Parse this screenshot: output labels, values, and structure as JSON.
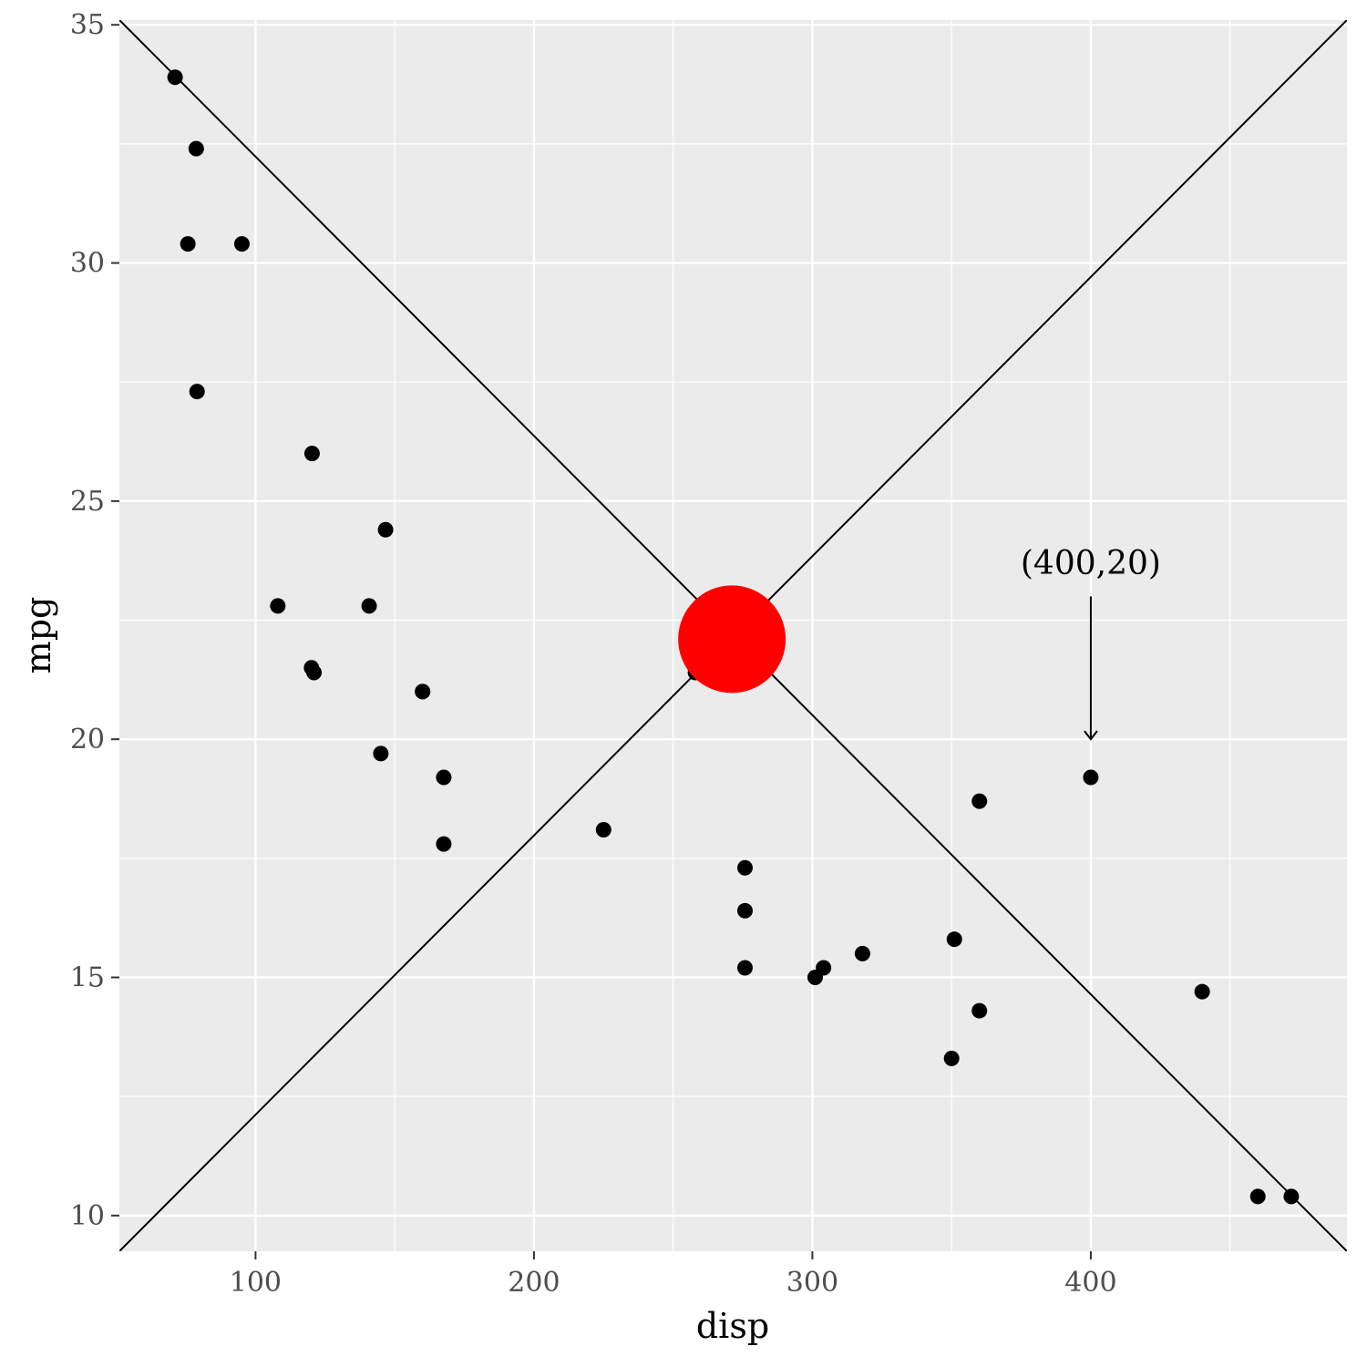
{
  "chart_data": {
    "type": "scatter",
    "xlabel": "disp",
    "ylabel": "mpg",
    "xlim": [
      51.1,
      492
    ],
    "ylim": [
      9.25,
      35.1
    ],
    "x_ticks": [
      100,
      200,
      300,
      400
    ],
    "x_tick_labels": [
      "100",
      "200",
      "300",
      "400"
    ],
    "y_ticks": [
      10,
      15,
      20,
      25,
      30,
      35
    ],
    "y_tick_labels": [
      "10",
      "15",
      "20",
      "25",
      "30",
      "35"
    ],
    "grid": true,
    "colors": {
      "panel": "#ebebeb",
      "grid": "#ffffff",
      "point": "#000000",
      "highlight": "#ff0000",
      "line": "#000000",
      "tick": "#4d4d4d"
    },
    "points": [
      {
        "x": 160,
        "y": 21.0
      },
      {
        "x": 160,
        "y": 21.0
      },
      {
        "x": 108,
        "y": 22.8
      },
      {
        "x": 258,
        "y": 21.4
      },
      {
        "x": 360,
        "y": 18.7
      },
      {
        "x": 225,
        "y": 18.1
      },
      {
        "x": 360,
        "y": 14.3
      },
      {
        "x": 146.7,
        "y": 24.4
      },
      {
        "x": 140.8,
        "y": 22.8
      },
      {
        "x": 167.6,
        "y": 19.2
      },
      {
        "x": 167.6,
        "y": 17.8
      },
      {
        "x": 275.8,
        "y": 16.4
      },
      {
        "x": 275.8,
        "y": 17.3
      },
      {
        "x": 275.8,
        "y": 15.2
      },
      {
        "x": 472,
        "y": 10.4
      },
      {
        "x": 460,
        "y": 10.4
      },
      {
        "x": 440,
        "y": 14.7
      },
      {
        "x": 78.7,
        "y": 32.4
      },
      {
        "x": 75.7,
        "y": 30.4
      },
      {
        "x": 71.1,
        "y": 33.9
      },
      {
        "x": 120.1,
        "y": 21.5
      },
      {
        "x": 318,
        "y": 15.5
      },
      {
        "x": 304,
        "y": 15.2
      },
      {
        "x": 350,
        "y": 13.3
      },
      {
        "x": 400,
        "y": 19.2
      },
      {
        "x": 79,
        "y": 27.3
      },
      {
        "x": 120.3,
        "y": 26.0
      },
      {
        "x": 95.1,
        "y": 30.4
      },
      {
        "x": 351,
        "y": 15.8
      },
      {
        "x": 145,
        "y": 19.7
      },
      {
        "x": 301,
        "y": 15.0
      },
      {
        "x": 121,
        "y": 21.4
      }
    ],
    "highlight_point": {
      "x": 271.1,
      "y": 22.1
    },
    "lines": [
      {
        "from": [
          51.1,
          35.1
        ],
        "to": [
          492,
          9.25
        ]
      },
      {
        "from": [
          51.1,
          9.25
        ],
        "to": [
          492,
          35.1
        ]
      }
    ],
    "annotation": {
      "text": "(400,20)",
      "arrow_to": [
        400,
        20
      ],
      "arrow_from": [
        400,
        23.0
      ],
      "text_pos": [
        400,
        23.7
      ]
    }
  }
}
